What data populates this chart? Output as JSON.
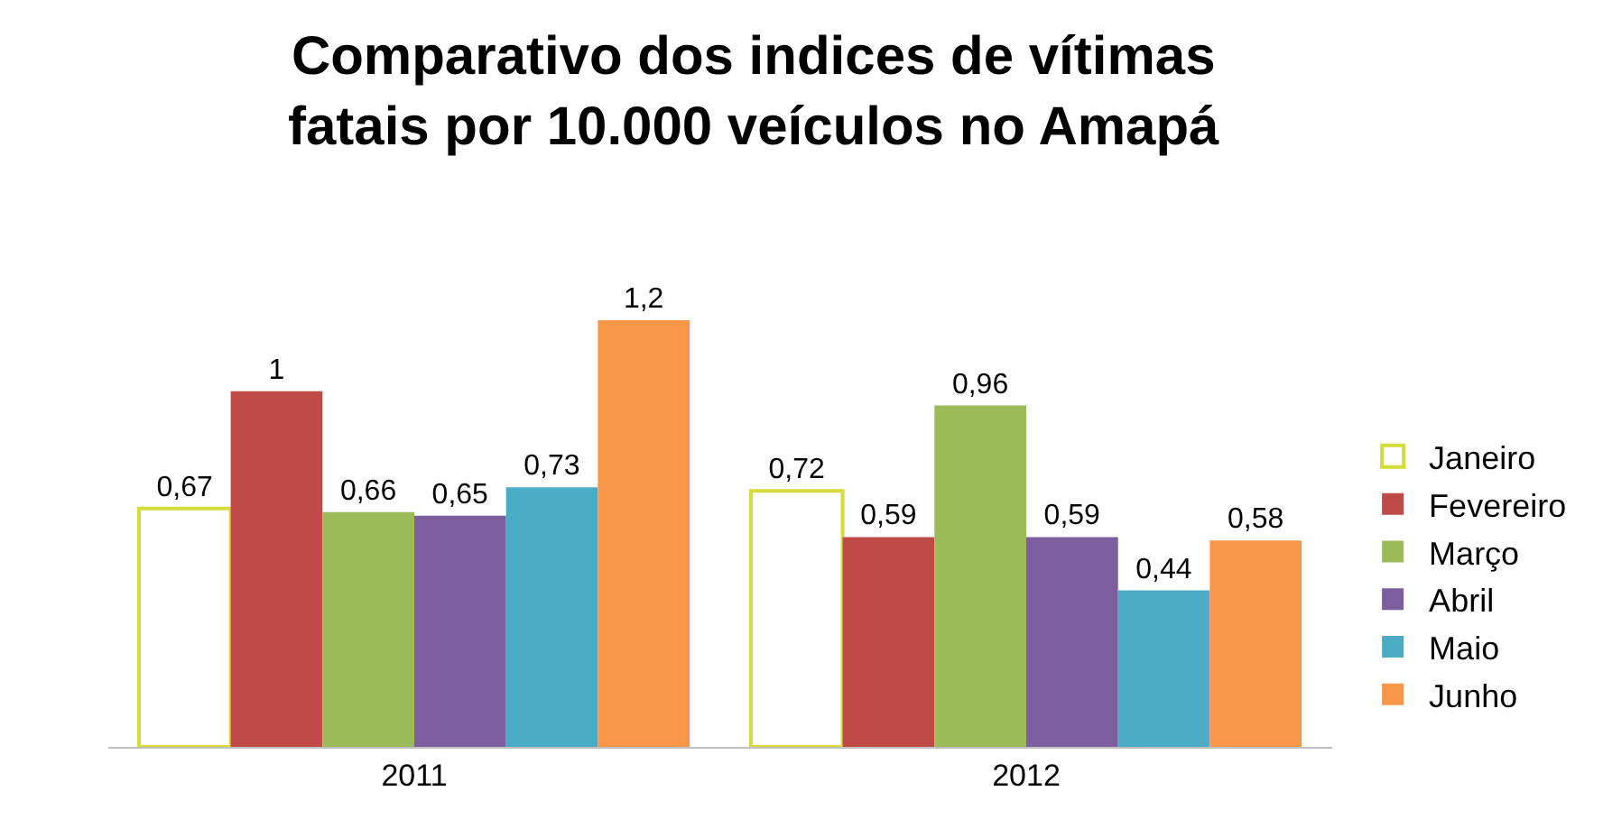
{
  "chart_data": {
    "type": "bar",
    "title": "Comparativo dos indices de vítimas\nfatais por 10.000 veículos no Amapá",
    "categories": [
      "2011",
      "2012"
    ],
    "legend": "right",
    "tick_labels": "x",
    "series": [
      {
        "name": "Janeiro",
        "color": "#ffffff",
        "values": [
          0.67,
          0.72
        ],
        "value_labels": [
          "0,67",
          "0,72"
        ]
      },
      {
        "name": "Fevereiro",
        "color": "#be4b48",
        "values": [
          1,
          0.59
        ],
        "value_labels": [
          "1",
          "0,59"
        ]
      },
      {
        "name": "Março",
        "color": "#9bbb59",
        "values": [
          0.66,
          0.96
        ],
        "value_labels": [
          "0,66",
          "0,96"
        ]
      },
      {
        "name": "Abril",
        "color": "#7d5fa0",
        "values": [
          0.65,
          0.59
        ],
        "value_labels": [
          "0,65",
          "0,59"
        ]
      },
      {
        "name": "Maio",
        "color": "#4bacc6",
        "values": [
          0.73,
          0.44
        ],
        "value_labels": [
          "0,73",
          "0,44"
        ]
      },
      {
        "name": "Junho",
        "color": "#f79646",
        "values": [
          1.2,
          0.58
        ],
        "value_labels": [
          "1,2",
          "0,58"
        ]
      }
    ]
  }
}
